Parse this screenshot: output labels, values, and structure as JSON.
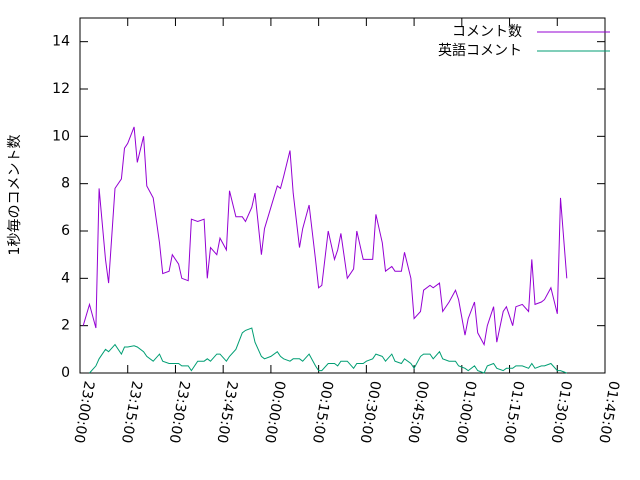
{
  "chart_data": {
    "type": "line",
    "y_label": "1秒毎のコメント数",
    "x": [
      "23:01:00",
      "23:03:00",
      "23:05:00",
      "23:06:00",
      "23:08:00",
      "23:09:00",
      "23:11:00",
      "23:13:00",
      "23:14:00",
      "23:15:00",
      "23:17:00",
      "23:18:00",
      "23:20:00",
      "23:21:00",
      "23:23:00",
      "23:25:00",
      "23:26:00",
      "23:28:00",
      "23:29:00",
      "23:31:00",
      "23:32:00",
      "23:34:00",
      "23:35:00",
      "23:37:00",
      "23:39:00",
      "23:40:00",
      "23:41:00",
      "23:43:00",
      "23:44:00",
      "23:46:00",
      "23:47:00",
      "23:49:00",
      "23:51:00",
      "23:52:00",
      "23:54:00",
      "23:55:00",
      "23:57:00",
      "23:58:00",
      "00:00:00",
      "00:02:00",
      "00:03:00",
      "00:04:00",
      "00:06:00",
      "00:07:00",
      "00:09:00",
      "00:10:00",
      "00:12:00",
      "00:14:00",
      "00:15:00",
      "00:16:00",
      "00:18:00",
      "00:20:00",
      "00:21:00",
      "00:22:00",
      "00:24:00",
      "00:26:00",
      "00:27:00",
      "00:29:00",
      "00:30:00",
      "00:32:00",
      "00:33:00",
      "00:35:00",
      "00:36:00",
      "00:38:00",
      "00:39:00",
      "00:41:00",
      "00:42:00",
      "00:44:00",
      "00:45:00",
      "00:47:00",
      "00:48:00",
      "00:50:00",
      "00:51:00",
      "00:53:00",
      "00:54:00",
      "00:56:00",
      "00:58:00",
      "00:59:00",
      "01:01:00",
      "01:02:00",
      "01:04:00",
      "01:05:00",
      "01:07:00",
      "01:08:00",
      "01:10:00",
      "01:11:00",
      "01:13:00",
      "01:14:00",
      "01:16:00",
      "01:17:00",
      "01:19:00",
      "01:21:00",
      "01:22:00",
      "01:23:00",
      "01:25:00",
      "01:26:00",
      "01:28:00",
      "01:30:00",
      "01:31:00",
      "01:33:00"
    ],
    "series": [
      {
        "name": "コメント数",
        "color": "#9400d3",
        "values": [
          2.0,
          2.9,
          1.9,
          7.8,
          4.8,
          3.8,
          7.8,
          8.2,
          9.5,
          9.7,
          10.4,
          8.9,
          10.0,
          7.9,
          7.4,
          5.5,
          4.2,
          4.3,
          5.0,
          4.6,
          4.0,
          3.9,
          6.5,
          6.4,
          6.5,
          4.0,
          5.3,
          5.0,
          5.7,
          5.2,
          7.7,
          6.6,
          6.6,
          6.4,
          7.0,
          7.6,
          5.0,
          6.1,
          7.0,
          7.9,
          7.8,
          8.3,
          9.4,
          7.6,
          5.3,
          6.1,
          7.1,
          4.8,
          3.6,
          3.7,
          6.0,
          4.8,
          5.2,
          5.9,
          4.0,
          4.4,
          6.0,
          4.8,
          4.8,
          4.8,
          6.7,
          5.5,
          4.3,
          4.5,
          4.3,
          4.3,
          5.1,
          4.0,
          2.3,
          2.6,
          3.5,
          3.7,
          3.6,
          3.8,
          2.6,
          3.0,
          3.5,
          3.1,
          1.6,
          2.3,
          3.0,
          1.7,
          1.2,
          2.0,
          2.8,
          1.3,
          2.6,
          2.8,
          2.0,
          2.8,
          2.9,
          2.6,
          4.8,
          2.9,
          3.0,
          3.1,
          3.6,
          2.5,
          7.4,
          4.0
        ]
      },
      {
        "name": "英語コメント",
        "color": "#009e73",
        "values": [
          null,
          0,
          0.3,
          0.6,
          1.0,
          0.9,
          1.2,
          0.8,
          1.1,
          1.1,
          1.15,
          1.1,
          0.9,
          0.7,
          0.5,
          0.8,
          0.5,
          0.4,
          0.4,
          0.4,
          0.3,
          0.3,
          0.1,
          0.5,
          0.5,
          0.6,
          0.5,
          0.8,
          0.8,
          0.5,
          0.7,
          1.0,
          1.7,
          1.8,
          1.9,
          1.3,
          0.7,
          0.6,
          0.7,
          0.9,
          0.7,
          0.6,
          0.5,
          0.6,
          0.6,
          0.5,
          0.8,
          0.3,
          0.1,
          0.1,
          0.4,
          0.4,
          0.3,
          0.5,
          0.5,
          0.2,
          0.4,
          0.4,
          0.5,
          0.6,
          0.8,
          0.7,
          0.5,
          0.8,
          0.5,
          0.4,
          0.6,
          0.4,
          0.2,
          0.7,
          0.8,
          0.8,
          0.6,
          0.9,
          0.6,
          0.5,
          0.5,
          0.3,
          0.2,
          0.1,
          0.3,
          0.1,
          0.0,
          0.3,
          0.4,
          0.2,
          0.1,
          0.2,
          0.2,
          0.3,
          0.3,
          0.2,
          0.4,
          0.2,
          0.3,
          0.3,
          0.4,
          0.1,
          0.1,
          0.0
        ]
      }
    ],
    "xlim": [
      "23:00:00",
      "01:45:00"
    ],
    "xticks": [
      "23:00:00",
      "23:15:00",
      "23:30:00",
      "23:45:00",
      "00:00:00",
      "00:15:00",
      "00:30:00",
      "00:45:00",
      "01:00:00",
      "01:15:00",
      "01:30:00",
      "01:45:00"
    ],
    "ylim": [
      0,
      15
    ],
    "yticks": [
      0,
      2,
      4,
      6,
      8,
      10,
      12,
      14
    ],
    "legend": "top-right"
  }
}
